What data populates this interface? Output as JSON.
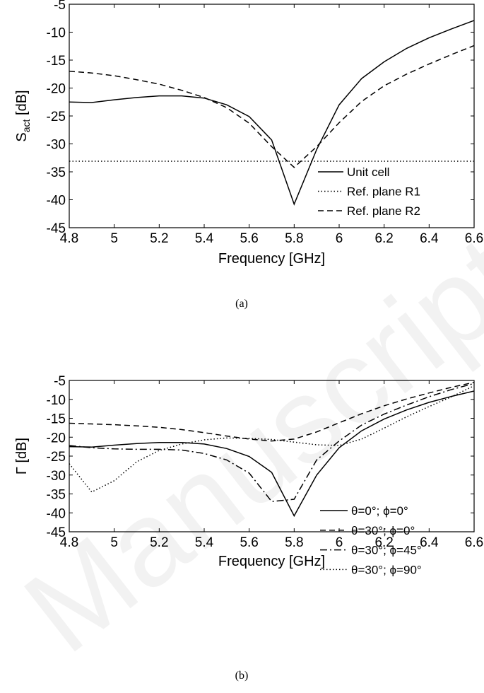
{
  "watermark": "Manuscript",
  "chart_data": [
    {
      "type": "line",
      "panel_caption": "(a)",
      "xlabel": "Frequency [GHz]",
      "ylabel_main": "S",
      "ylabel_sub": "act",
      "ylabel_unit": " [dB]",
      "xlim": [
        4.8,
        6.6
      ],
      "ylim": [
        -45,
        -5
      ],
      "xticks": [
        "4.8",
        "5",
        "5.2",
        "5.4",
        "5.6",
        "5.8",
        "6",
        "6.2",
        "6.4",
        "6.6"
      ],
      "yticks": [
        "-5",
        "-10",
        "-15",
        "-20",
        "-25",
        "-30",
        "-35",
        "-40",
        "-45"
      ],
      "grid": false,
      "legend": "bottom-right",
      "series": [
        {
          "name": "Unit cell",
          "style": "solid",
          "x": [
            4.8,
            4.9,
            5.0,
            5.1,
            5.2,
            5.3,
            5.4,
            5.5,
            5.6,
            5.7,
            5.8,
            5.9,
            6.0,
            6.1,
            6.2,
            6.3,
            6.4,
            6.5,
            6.6
          ],
          "y": [
            -22.5,
            -22.6,
            -22.1,
            -21.7,
            -21.4,
            -21.4,
            -21.8,
            -23.0,
            -25.1,
            -29.3,
            -40.8,
            -31.0,
            -23.0,
            -18.3,
            -15.3,
            -12.9,
            -11.0,
            -9.4,
            -7.9
          ]
        },
        {
          "name": "Ref. plane R1",
          "style": "dotted",
          "x": [
            4.8,
            6.6
          ],
          "y": [
            -33.1,
            -33.1
          ]
        },
        {
          "name": "Ref. plane R2",
          "style": "dashed",
          "x": [
            4.8,
            4.9,
            5.0,
            5.1,
            5.2,
            5.3,
            5.4,
            5.5,
            5.6,
            5.7,
            5.8,
            5.9,
            6.0,
            6.1,
            6.2,
            6.3,
            6.4,
            6.5,
            6.6
          ],
          "y": [
            -17.0,
            -17.3,
            -17.8,
            -18.5,
            -19.3,
            -20.4,
            -21.7,
            -23.5,
            -26.3,
            -30.5,
            -34.2,
            -30.5,
            -26.2,
            -22.4,
            -19.6,
            -17.5,
            -15.7,
            -14.0,
            -12.4
          ]
        }
      ]
    },
    {
      "type": "line",
      "panel_caption": "(b)",
      "xlabel": "Frequency [GHz]",
      "ylabel_main": "Γ",
      "ylabel_sub": "",
      "ylabel_unit": " [dB]",
      "xlim": [
        4.8,
        6.6
      ],
      "ylim": [
        -45,
        -5
      ],
      "xticks": [
        "4.8",
        "5",
        "5.2",
        "5.4",
        "5.6",
        "5.8",
        "6",
        "6.2",
        "6.4",
        "6.6"
      ],
      "yticks": [
        "-5",
        "-10",
        "-15",
        "-20",
        "-25",
        "-30",
        "-35",
        "-40",
        "-45"
      ],
      "grid": false,
      "legend": "bottom-right",
      "series": [
        {
          "name": "θ=0°; ϕ=0°",
          "style": "solid",
          "x": [
            4.8,
            4.9,
            5.0,
            5.1,
            5.2,
            5.3,
            5.4,
            5.5,
            5.6,
            5.7,
            5.8,
            5.9,
            6.0,
            6.1,
            6.2,
            6.3,
            6.4,
            6.5,
            6.6
          ],
          "y": [
            -22.5,
            -22.6,
            -22.1,
            -21.7,
            -21.4,
            -21.4,
            -21.8,
            -23.0,
            -25.1,
            -29.3,
            -40.8,
            -30.0,
            -22.8,
            -18.3,
            -15.2,
            -12.8,
            -10.8,
            -9.2,
            -7.8
          ]
        },
        {
          "name": "θ=30°; ϕ=0°",
          "style": "dashed",
          "x": [
            4.8,
            4.9,
            5.0,
            5.1,
            5.2,
            5.3,
            5.4,
            5.5,
            5.6,
            5.7,
            5.8,
            5.9,
            6.0,
            6.1,
            6.2,
            6.3,
            6.4,
            6.5,
            6.6
          ],
          "y": [
            -16.3,
            -16.5,
            -16.7,
            -17.0,
            -17.4,
            -18.0,
            -18.8,
            -19.7,
            -20.5,
            -21.0,
            -20.5,
            -18.6,
            -16.2,
            -13.8,
            -11.7,
            -9.9,
            -8.3,
            -6.8,
            -5.5
          ]
        },
        {
          "name": "θ=30°; ϕ=45°",
          "style": "dashdot",
          "x": [
            4.8,
            4.9,
            5.0,
            5.1,
            5.2,
            5.3,
            5.4,
            5.5,
            5.6,
            5.7,
            5.8,
            5.9,
            6.0,
            6.1,
            6.2,
            6.3,
            6.4,
            6.5,
            6.6
          ],
          "y": [
            -22.2,
            -22.8,
            -23.1,
            -23.2,
            -23.2,
            -23.4,
            -24.3,
            -26.0,
            -29.5,
            -37.0,
            -36.4,
            -26.0,
            -21.0,
            -16.8,
            -13.9,
            -11.5,
            -9.3,
            -7.4,
            -5.8
          ]
        },
        {
          "name": "θ=30°; ϕ=90°",
          "style": "dotted",
          "x": [
            4.8,
            4.9,
            5.0,
            5.1,
            5.2,
            5.3,
            5.4,
            5.5,
            5.6,
            5.7,
            5.8,
            5.9,
            6.0,
            6.1,
            6.2,
            6.3,
            6.4,
            6.5,
            6.6
          ],
          "y": [
            -27.0,
            -34.5,
            -31.5,
            -26.5,
            -23.5,
            -21.8,
            -20.7,
            -20.2,
            -20.3,
            -20.6,
            -21.3,
            -22.0,
            -22.2,
            -20.5,
            -17.6,
            -14.6,
            -11.9,
            -9.3,
            -6.4
          ]
        }
      ]
    }
  ]
}
